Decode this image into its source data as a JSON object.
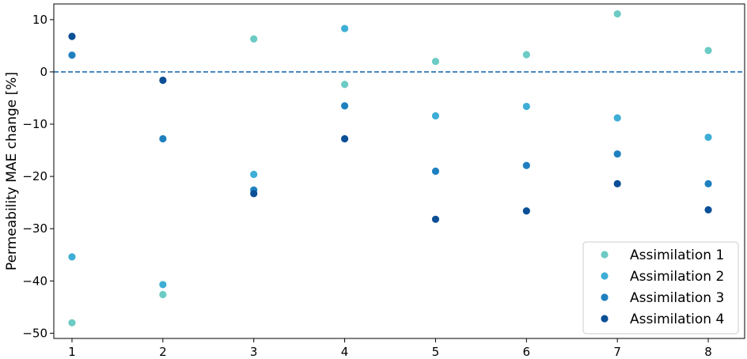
{
  "chart_data": {
    "type": "scatter",
    "title": "",
    "xlabel": "",
    "ylabel": "Permeability MAE change [%]",
    "xlim": [
      0.8,
      8.4
    ],
    "ylim": [
      -51,
      13
    ],
    "x_ticks": [
      1,
      2,
      3,
      4,
      5,
      6,
      7,
      8
    ],
    "y_ticks": [
      -50,
      -40,
      -30,
      -20,
      -10,
      0,
      10
    ],
    "x_tick_labels": [
      "1",
      "2",
      "3",
      "4",
      "5",
      "6",
      "7",
      "8"
    ],
    "y_tick_labels": [
      "−50",
      "−40",
      "−30",
      "−20",
      "−10",
      "0",
      "10"
    ],
    "reference_line": {
      "y": 0,
      "style": "dashed",
      "color": "#1f6fb4"
    },
    "grid": false,
    "legend_position": "lower-right",
    "series": [
      {
        "name": "Assimilation 1",
        "color": "#6ccbc4",
        "x": [
          1,
          2,
          3,
          4,
          5,
          6,
          7,
          8
        ],
        "y": [
          -48.0,
          -42.6,
          6.3,
          -2.4,
          2.0,
          3.3,
          11.1,
          4.1
        ]
      },
      {
        "name": "Assimilation 2",
        "color": "#3eaed6",
        "x": [
          1,
          2,
          3,
          4,
          5,
          6,
          7,
          8
        ],
        "y": [
          -35.4,
          -40.7,
          -19.6,
          8.3,
          -8.4,
          -6.6,
          -8.8,
          -12.5
        ]
      },
      {
        "name": "Assimilation 3",
        "color": "#1f80c0",
        "x": [
          1,
          2,
          3,
          4,
          5,
          6,
          7,
          8
        ],
        "y": [
          3.2,
          -12.8,
          -22.6,
          -6.5,
          -19.0,
          -17.9,
          -15.7,
          -21.4
        ]
      },
      {
        "name": "Assimilation 4",
        "color": "#0b4f96",
        "x": [
          1,
          2,
          3,
          4,
          5,
          6,
          7,
          8
        ],
        "y": [
          6.8,
          -1.6,
          -23.3,
          -12.8,
          -28.2,
          -26.6,
          -21.4,
          -26.4
        ]
      }
    ]
  }
}
